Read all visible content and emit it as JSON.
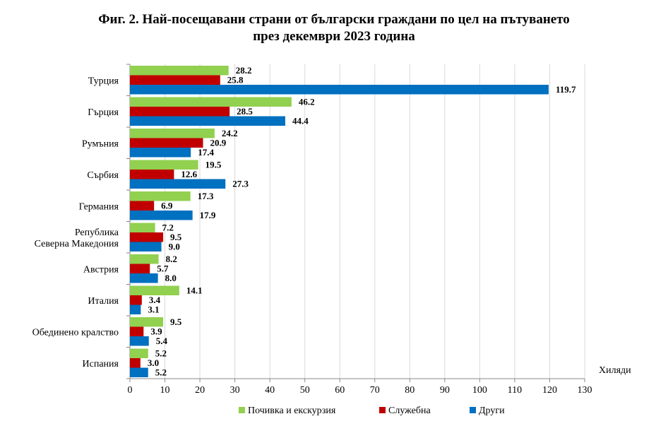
{
  "chart_data": {
    "type": "bar",
    "orientation": "horizontal",
    "title_line1": "Фиг. 2. Най-посещавани страни от български граждани по цел на пътуването",
    "title_line2": "през декември 2023 година",
    "categories": [
      [
        "Турция"
      ],
      [
        "Гърция"
      ],
      [
        "Румъния"
      ],
      [
        "Сърбия"
      ],
      [
        "Германия"
      ],
      [
        "Република",
        "Северна Македония"
      ],
      [
        "Австрия"
      ],
      [
        "Италия"
      ],
      [
        "Обединено кралство"
      ],
      [
        "Испания"
      ]
    ],
    "series": [
      {
        "name": "Почивка и екскурзия",
        "color": "#92D050",
        "values": [
          28.2,
          46.2,
          24.2,
          19.5,
          17.3,
          7.2,
          8.2,
          14.1,
          9.5,
          5.2
        ],
        "labels": [
          "28.2",
          "46.2",
          "24.2",
          "19.5",
          "17.3",
          "7.2",
          "8.2",
          "14.1",
          "9.5",
          "5.2"
        ]
      },
      {
        "name": "Служебна",
        "color": "#C00000",
        "values": [
          25.8,
          28.5,
          20.9,
          12.6,
          6.9,
          9.5,
          5.7,
          3.4,
          3.9,
          3.0
        ],
        "labels": [
          "25.8",
          "28.5",
          "20.9",
          "12.6",
          "6.9",
          "9.5",
          "5.7",
          "3.4",
          "3.9",
          "3.0"
        ]
      },
      {
        "name": "Други",
        "color": "#0070C0",
        "values": [
          119.7,
          44.4,
          17.4,
          27.3,
          17.9,
          9.0,
          8.0,
          3.1,
          5.4,
          5.2
        ],
        "labels": [
          "119.7",
          "44.4",
          "17.4",
          "27.3",
          "17.9",
          "9.0",
          "8.0",
          "3.1",
          "5.4",
          "5.2"
        ]
      }
    ],
    "xlim": [
      0,
      130
    ],
    "xticks": [
      "0",
      "10",
      "20",
      "30",
      "40",
      "50",
      "60",
      "70",
      "80",
      "90",
      "100",
      "110",
      "120",
      "130"
    ],
    "xlabel": "Хиляди",
    "grid": "vertical",
    "legend_position": "bottom"
  }
}
